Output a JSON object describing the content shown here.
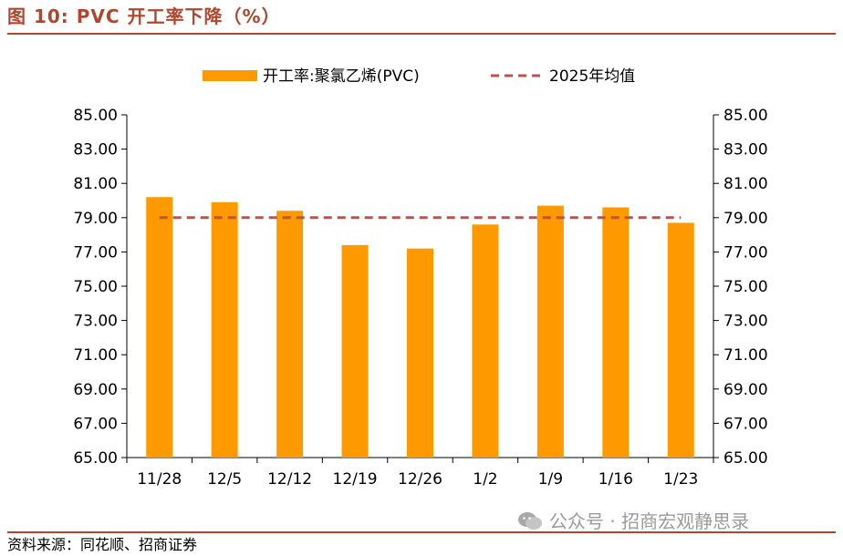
{
  "figure": {
    "title": "图 10:  PVC 开工率下降（%）",
    "source": "资料来源：同花顺、招商证券",
    "watermark": "公众号 · 招商宏观静思录"
  },
  "colors": {
    "bar": "#FF9900",
    "avg_line": "#C0504D",
    "title": "#B0462E",
    "rule": "#B0462E"
  },
  "chart_data": {
    "type": "bar",
    "categories": [
      "11/28",
      "12/5",
      "12/12",
      "12/19",
      "12/26",
      "1/2",
      "1/9",
      "1/16",
      "1/23"
    ],
    "series": [
      {
        "name": "开工率:聚氯乙烯(PVC)",
        "type": "bar",
        "values": [
          80.2,
          79.9,
          79.4,
          77.4,
          77.2,
          78.6,
          79.7,
          79.6,
          78.7
        ]
      },
      {
        "name": "2025年均值",
        "type": "line-dashed",
        "values": [
          79.0,
          79.0,
          79.0,
          79.0,
          79.0,
          79.0,
          79.0,
          79.0,
          79.0
        ]
      }
    ],
    "ylim": [
      65,
      85
    ],
    "y_ticks": [
      "65.00",
      "67.00",
      "69.00",
      "71.00",
      "73.00",
      "75.00",
      "77.00",
      "79.00",
      "81.00",
      "83.00",
      "85.00"
    ],
    "y2_ticks": [
      "65.00",
      "67.00",
      "69.00",
      "71.00",
      "73.00",
      "75.00",
      "77.00",
      "79.00",
      "81.00",
      "83.00",
      "85.00"
    ],
    "legend_position": "top",
    "grid": false
  }
}
